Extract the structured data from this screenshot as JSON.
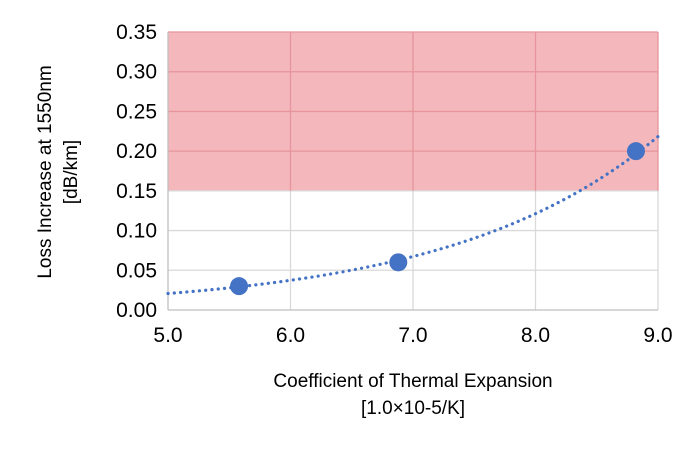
{
  "chart_data": {
    "type": "scatter",
    "xlabel": "Coefficient of Thermal Expansion",
    "xlabel_unit": "[1.0×10-5/K]",
    "ylabel": "Loss Increase at 1550nm",
    "ylabel_unit": "[dB/km]",
    "xlim": [
      5.0,
      9.0
    ],
    "ylim": [
      0.0,
      0.35
    ],
    "x_ticks": [
      "5.0",
      "6.0",
      "7.0",
      "8.0",
      "9.0"
    ],
    "y_ticks": [
      "0.00",
      "0.05",
      "0.10",
      "0.15",
      "0.20",
      "0.25",
      "0.30",
      "0.35"
    ],
    "grid": true,
    "series": [
      {
        "points": [
          {
            "x": 5.58,
            "y": 0.03
          },
          {
            "x": 6.88,
            "y": 0.06
          },
          {
            "x": 8.82,
            "y": 0.2
          }
        ]
      }
    ],
    "trendline": {
      "type": "exponential",
      "style": "dotted",
      "x_range": [
        5.0,
        9.0
      ]
    },
    "shaded_region": {
      "y_from": 0.15,
      "y_to": 0.35
    },
    "colors": {
      "points": "#4472c4",
      "trendline": "#4472c4",
      "shade": "#f4b8bc",
      "grid": "#d9d9d9",
      "grid_in_shade": "#e5959b"
    }
  }
}
